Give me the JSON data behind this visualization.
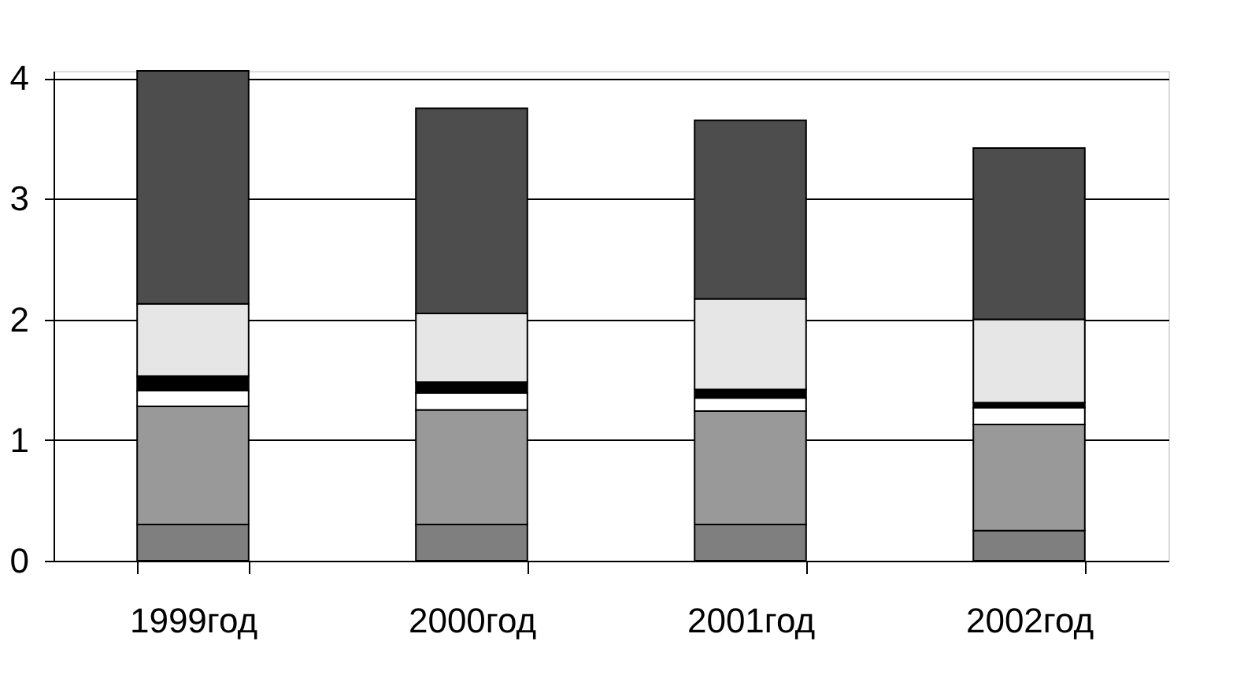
{
  "chart_data": {
    "type": "bar",
    "stacked": true,
    "categories": [
      "1999год",
      "2000год",
      "2001год",
      "2002год"
    ],
    "series": [
      {
        "color": "#7f7f7f",
        "values": [
          0.3,
          0.3,
          0.3,
          0.25
        ]
      },
      {
        "color": "#999999",
        "values": [
          0.98,
          0.95,
          0.94,
          0.88
        ]
      },
      {
        "color": "#ffffff",
        "values": [
          0.13,
          0.14,
          0.11,
          0.14
        ]
      },
      {
        "color": "#000000",
        "values": [
          0.12,
          0.09,
          0.07,
          0.04
        ]
      },
      {
        "color": "#e6e6e6",
        "values": [
          0.6,
          0.57,
          0.75,
          0.69
        ]
      },
      {
        "color": "#4d4d4d",
        "values": [
          1.93,
          1.7,
          1.48,
          1.42
        ]
      }
    ],
    "ylim": [
      0,
      4.06
    ],
    "yticks": [
      0,
      1,
      2,
      3,
      4
    ],
    "grid": "y",
    "legend": false
  }
}
